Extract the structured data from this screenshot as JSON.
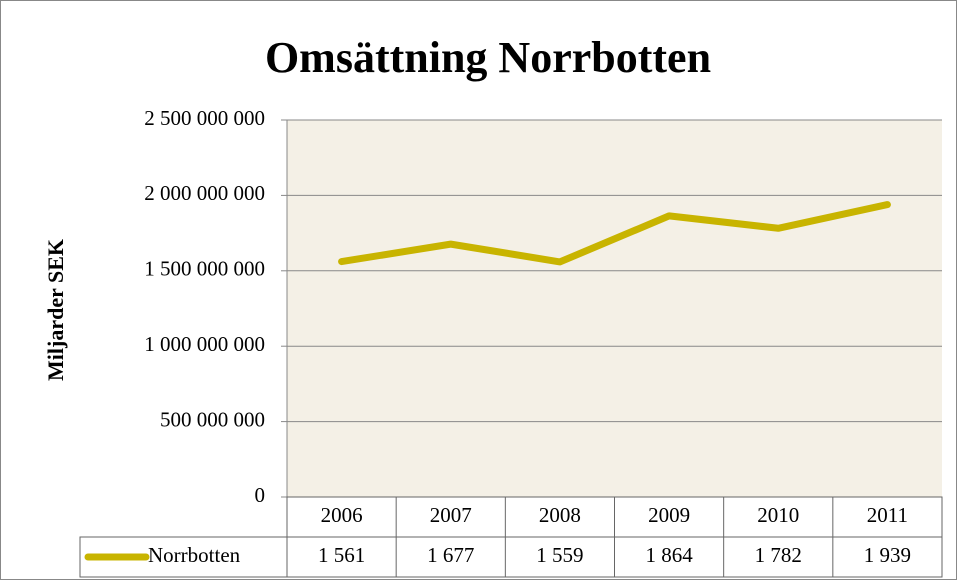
{
  "chart_data": {
    "type": "line",
    "title": "Omsättning Norrbotten",
    "y_label": "Miljarder SEK",
    "categories": [
      "2006",
      "2007",
      "2008",
      "2009",
      "2010",
      "2011"
    ],
    "series": [
      {
        "name": "Norrbotten",
        "color": "#c8b400",
        "values": [
          1561000000,
          1677000000,
          1559000000,
          1864000000,
          1782000000,
          1939000000
        ],
        "value_labels": [
          "1 561",
          "1 677",
          "1 559",
          "1 864",
          "1 782",
          "1 939"
        ]
      }
    ],
    "ylim": [
      0,
      2500000000
    ],
    "yticks": [
      0,
      {
        "value": 500000000,
        "label": "500 000 000"
      },
      {
        "value": 1000000000,
        "label": "1 000 000 000"
      },
      {
        "value": 1500000000,
        "label": "1 500 000 000"
      },
      {
        "value": 2000000000,
        "label": "2 000 000 000"
      },
      {
        "value": 2500000000,
        "label": "2 500 000 000"
      }
    ],
    "grid": true,
    "plot_background": "#f4f0e6"
  }
}
